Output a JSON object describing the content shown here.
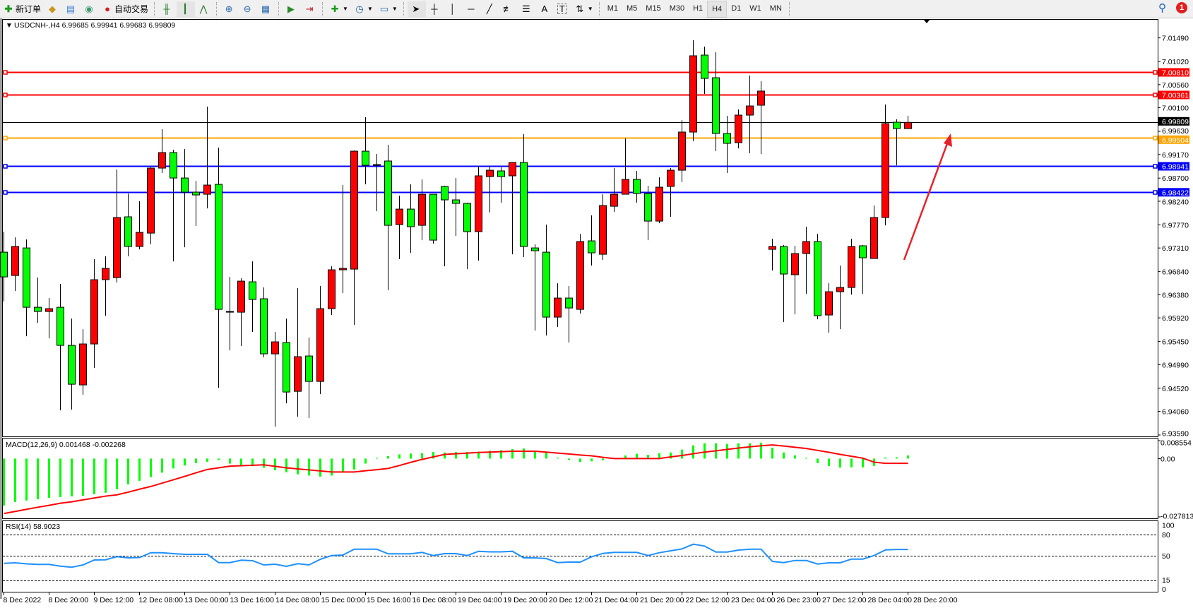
{
  "toolbar": {
    "new_order_label": "新订单",
    "auto_trading_label": "自动交易",
    "icons": [
      "new-order-icon",
      "gold-icon",
      "market-watch-icon",
      "signal-icon",
      "auto-trading-icon",
      "bar-chart-icon",
      "candlestick-icon",
      "line-chart-icon",
      "zoom-in-icon",
      "zoom-out-icon",
      "tile-windows-icon",
      "chart-shift-icon",
      "auto-scroll-icon",
      "indicators-icon",
      "periods-icon",
      "templates-icon",
      "cursor-icon",
      "crosshair-icon",
      "vertical-line-icon",
      "horizontal-line-icon",
      "trendline-icon",
      "fibonacci-icon",
      "fibo-fan-icon",
      "text-icon",
      "text-label-icon",
      "arrows-icon"
    ],
    "text_tool_label": "A",
    "timeframes": [
      "M1",
      "M5",
      "M15",
      "M30",
      "H1",
      "H4",
      "D1",
      "W1",
      "MN"
    ],
    "active_timeframe": "H4",
    "notification_count": "1"
  },
  "chart": {
    "header": "USDCNH-,H4  6.99685 6.99941 6.99683 6.99809",
    "symbol": "USDCNH-",
    "timeframe": "H4",
    "colors": {
      "bull": "#FF0000",
      "bear": "#00FF00",
      "wick": "#000000",
      "background": "#FFFFFF"
    },
    "price_ticks": [
      "7.01490",
      "7.01020",
      "7.00560",
      "7.00100",
      "6.99630",
      "6.99170",
      "6.98700",
      "6.98240",
      "6.97770",
      "6.97310",
      "6.96840",
      "6.96380",
      "6.95920",
      "6.95450",
      "6.94990",
      "6.94520",
      "6.94060",
      "6.93590"
    ],
    "current_price": {
      "value": "6.99809",
      "color": "#000000"
    },
    "hlines": [
      {
        "value": "7.00810",
        "color": "#FF0000"
      },
      {
        "value": "7.00361",
        "color": "#FF0000"
      },
      {
        "value": "6.99504",
        "color": "#FFA500"
      },
      {
        "value": "6.98941",
        "color": "#0000FF"
      },
      {
        "value": "6.98422",
        "color": "#0000FF"
      }
    ],
    "arrow_color": "#E8202A",
    "time_labels": [
      "8 Dec 2022",
      "8 Dec 20:00",
      "9 Dec 12:00",
      "12 Dec 08:00",
      "13 Dec 00:00",
      "13 Dec 16:00",
      "14 Dec 08:00",
      "15 Dec 00:00",
      "15 Dec 16:00",
      "16 Dec 08:00",
      "19 Dec 04:00",
      "19 Dec 20:00",
      "20 Dec 12:00",
      "21 Dec 04:00",
      "21 Dec 20:00",
      "22 Dec 12:00",
      "23 Dec 04:00",
      "26 Dec 23:00",
      "27 Dec 12:00",
      "28 Dec 04:00",
      "28 Dec 20:00"
    ]
  },
  "macd": {
    "label": "MACD(12,26,9) 0.001468 -0.002268",
    "axis_labels": [
      "0.008554",
      "0.00",
      "-0.027813"
    ],
    "colors": {
      "histogram": "#00FF00",
      "signal": "#FF0000"
    }
  },
  "rsi": {
    "label": "RSI(14) 58.9023",
    "axis_labels": [
      "100",
      "80",
      "50",
      "15",
      "0"
    ],
    "levels": [
      80,
      50,
      15
    ],
    "color": "#1E90FF"
  },
  "chart_data": {
    "type": "candlestick",
    "ohlc": [
      [
        6.97227,
        6.97635,
        6.96244,
        6.96735
      ],
      [
        6.96763,
        6.97522,
        6.96454,
        6.9734
      ],
      [
        6.97311,
        6.9748,
        6.95555,
        6.96131
      ],
      [
        6.96131,
        6.96721,
        6.95822,
        6.96047
      ],
      [
        6.96047,
        6.96314,
        6.95513,
        6.96103
      ],
      [
        6.96131,
        6.96595,
        6.9408,
        6.95373
      ],
      [
        6.95373,
        6.95906,
        6.94094,
        6.946
      ],
      [
        6.94586,
        6.95696,
        6.94389,
        6.95401
      ],
      [
        6.95401,
        6.97087,
        6.94923,
        6.96679
      ],
      [
        6.96679,
        6.97143,
        6.95963,
        6.96904
      ],
      [
        6.96721,
        6.98871,
        6.96623,
        6.97916
      ],
      [
        6.9793,
        6.98393,
        6.97143,
        6.9734
      ],
      [
        6.9734,
        6.98239,
        6.97283,
        6.97621
      ],
      [
        6.97606,
        6.98913,
        6.97382,
        6.98899
      ],
      [
        6.98899,
        6.99672,
        6.98801,
        6.99208
      ],
      [
        6.99208,
        6.99264,
        6.97044,
        6.98702
      ],
      [
        6.98702,
        6.99278,
        6.97325,
        6.98421
      ],
      [
        6.98421,
        6.98646,
        6.97747,
        6.98365
      ],
      [
        6.98379,
        7.00121,
        6.98098,
        6.98562
      ],
      [
        6.98576,
        6.99307,
        6.9453,
        6.96089
      ],
      [
        6.96047,
        6.96735,
        6.95274,
        6.96033
      ],
      [
        6.96033,
        6.96707,
        6.95358,
        6.96651
      ],
      [
        6.96637,
        6.97044,
        6.95639,
        6.96286
      ],
      [
        6.963,
        6.96525,
        6.95134,
        6.95204
      ],
      [
        6.95204,
        6.95639,
        6.93757,
        6.95443
      ],
      [
        6.95429,
        6.95906,
        6.9422,
        6.94445
      ],
      [
        6.94459,
        6.96511,
        6.93953,
        6.95148
      ],
      [
        6.95162,
        6.95527,
        6.93925,
        6.94656
      ],
      [
        6.94656,
        6.96553,
        6.94403,
        6.96103
      ],
      [
        6.96103,
        6.96946,
        6.95977,
        6.96876
      ],
      [
        6.96876,
        6.98562,
        6.96412,
        6.96904
      ],
      [
        6.9689,
        6.9925,
        6.9578,
        6.99236
      ],
      [
        6.99236,
        6.99911,
        6.98576,
        6.98955
      ],
      [
        6.98969,
        6.9918,
        6.98042,
        6.98969
      ],
      [
        6.9904,
        6.99363,
        6.96468,
        6.97761
      ],
      [
        6.97775,
        6.98351,
        6.97087,
        6.98084
      ],
      [
        6.98084,
        6.98576,
        6.97213,
        6.97733
      ],
      [
        6.97761,
        6.98674,
        6.97466,
        6.98379
      ],
      [
        6.98379,
        6.98379,
        6.97396,
        6.97466
      ],
      [
        6.98534,
        6.98548,
        6.96946,
        6.98267
      ],
      [
        6.98267,
        6.98702,
        6.9755,
        6.98197
      ],
      [
        6.98197,
        6.98211,
        6.9689,
        6.97635
      ],
      [
        6.97635,
        6.98941,
        6.97059,
        6.98745
      ],
      [
        6.9873,
        6.98941,
        6.98014,
        6.98857
      ],
      [
        6.98843,
        6.98913,
        6.98211,
        6.9873
      ],
      [
        6.98745,
        6.99011,
        6.97185,
        6.99011
      ],
      [
        6.99011,
        6.99573,
        6.97129,
        6.9734
      ],
      [
        6.97311,
        6.97382,
        6.95668,
        6.97255
      ],
      [
        6.97227,
        6.97775,
        6.95569,
        6.95935
      ],
      [
        6.95935,
        6.96609,
        6.95738,
        6.96314
      ],
      [
        6.96314,
        6.96553,
        6.95429,
        6.96117
      ],
      [
        6.96089,
        6.97592,
        6.96005,
        6.97438
      ],
      [
        6.97452,
        6.97958,
        6.9696,
        6.97213
      ],
      [
        6.97185,
        6.98379,
        6.97073,
        6.98154
      ],
      [
        6.9814,
        6.98899,
        6.98028,
        6.98379
      ],
      [
        6.98379,
        6.99489,
        6.98379,
        6.98674
      ],
      [
        6.98674,
        6.98843,
        6.98211,
        6.98393
      ],
      [
        6.98393,
        6.98548,
        6.97466,
        6.97845
      ],
      [
        6.97845,
        6.98716,
        6.97803,
        6.9852
      ],
      [
        6.98534,
        6.98899,
        6.9793,
        6.98857
      ],
      [
        6.98857,
        6.99854,
        6.98618,
        6.99616
      ],
      [
        6.99616,
        7.01442,
        6.99433,
        7.01133
      ],
      [
        7.01147,
        7.01316,
        7.00374,
        7.00683
      ],
      [
        7.00697,
        7.01203,
        6.99236,
        6.99588
      ],
      [
        6.99588,
        6.99939,
        6.98801,
        6.99391
      ],
      [
        6.99405,
        7.00065,
        6.99292,
        6.99953
      ],
      [
        6.99953,
        7.0074,
        6.99194,
        7.00135
      ],
      [
        7.0015,
        7.00627,
        6.9918,
        7.00431
      ],
      [
        6.97283,
        6.97494,
        6.96862,
        6.9734
      ],
      [
        6.9734,
        6.97368,
        6.95836,
        6.96792
      ],
      [
        6.96778,
        6.97354,
        6.95991,
        6.97199
      ],
      [
        6.97199,
        6.97733,
        6.96398,
        6.97438
      ],
      [
        6.97438,
        6.97592,
        6.95892,
        6.95963
      ],
      [
        6.95977,
        6.96609,
        6.95625,
        6.9644
      ],
      [
        6.9644,
        6.9696,
        6.95696,
        6.96525
      ],
      [
        6.96525,
        6.97494,
        6.96384,
        6.9734
      ],
      [
        6.97354,
        6.97368,
        6.96398,
        6.97115
      ],
      [
        6.97101,
        6.98154,
        6.97101,
        6.97916
      ],
      [
        6.97916,
        7.00164,
        6.97761,
        6.99784
      ],
      [
        6.99812,
        6.99869,
        6.98955,
        6.99686
      ],
      [
        6.99685,
        6.99941,
        6.99683,
        6.99809
      ]
    ],
    "price_range": [
      6.9359,
      7.0149
    ],
    "macd_histogram": [
      -0.0224,
      -0.0207,
      -0.02,
      -0.0194,
      -0.0187,
      -0.0184,
      -0.018,
      -0.0177,
      -0.017,
      -0.0163,
      -0.0146,
      -0.0123,
      -0.0106,
      -0.0088,
      -0.0067,
      -0.0047,
      -0.0033,
      -0.0022,
      -0.0015,
      -0.0007,
      -0.0024,
      -0.0033,
      -0.0036,
      -0.0044,
      -0.0056,
      -0.0065,
      -0.0075,
      -0.0081,
      -0.0086,
      -0.0081,
      -0.0064,
      -0.0052,
      -0.0024,
      -0.0002,
      0.0012,
      0.002,
      0.0024,
      0.0026,
      0.0031,
      0.0029,
      0.0031,
      0.0031,
      0.0033,
      0.0037,
      0.004,
      0.0045,
      0.0048,
      0.0033,
      0.0029,
      0.0004,
      -0.0006,
      -0.0016,
      -0.0013,
      -0.0008,
      -0.0002,
      0.0015,
      0.0023,
      0.0018,
      0.0026,
      0.0029,
      0.0043,
      0.0063,
      0.0073,
      0.0073,
      0.007,
      0.0073,
      0.0073,
      0.0076,
      0.0052,
      0.0029,
      0.0015,
      0.0002,
      -0.0022,
      -0.0036,
      -0.0043,
      -0.0042,
      -0.0042,
      -0.0036,
      0.0005,
      0.0006,
      0.001468
    ],
    "macd_signal": [
      -0.0262,
      -0.0252,
      -0.0242,
      -0.0232,
      -0.0223,
      -0.0213,
      -0.0206,
      -0.0197,
      -0.0188,
      -0.0179,
      -0.0173,
      -0.016,
      -0.0146,
      -0.0133,
      -0.0117,
      -0.0101,
      -0.0085,
      -0.0068,
      -0.0052,
      -0.0044,
      -0.0036,
      -0.0034,
      -0.0032,
      -0.003,
      -0.0037,
      -0.0044,
      -0.0049,
      -0.0054,
      -0.0059,
      -0.0064,
      -0.0064,
      -0.0064,
      -0.0058,
      -0.0053,
      -0.0047,
      -0.0033,
      -0.0018,
      -0.0004,
      0.0008,
      0.002,
      0.0023,
      0.0026,
      0.0029,
      0.0031,
      0.0033,
      0.0035,
      0.0035,
      0.0035,
      0.0031,
      0.0026,
      0.0022,
      0.0017,
      0.0013,
      0.0006,
      0.0,
      0.0,
      0.0,
      0.0,
      0.0,
      0.0008,
      0.0015,
      0.0023,
      0.0031,
      0.0037,
      0.0044,
      0.005,
      0.0056,
      0.0061,
      0.0065,
      0.006,
      0.0054,
      0.0048,
      0.0039,
      0.003,
      0.002,
      0.0011,
      0.0002,
      -0.0017,
      -0.002268,
      -0.002268,
      -0.002268
    ],
    "macd_range": [
      -0.027813,
      0.008554
    ],
    "rsi": [
      39.3,
      40,
      38.5,
      37.7,
      37.7,
      35.3,
      33.7,
      37,
      44,
      44.3,
      48.7,
      47,
      47.5,
      54.3,
      54.3,
      53,
      52,
      52,
      52,
      40.3,
      40.3,
      43.7,
      43,
      37,
      38,
      35,
      38.7,
      37,
      45,
      50.3,
      51,
      59.3,
      59.3,
      59.3,
      52.7,
      52.7,
      52.7,
      54.7,
      50.3,
      53,
      53,
      50.3,
      56.3,
      55.5,
      55.5,
      56.3,
      47,
      47,
      46,
      40.3,
      41,
      41,
      48.5,
      53.3,
      54.7,
      54.7,
      54.7,
      50.3,
      54.3,
      57,
      59.7,
      66.3,
      63.7,
      55.3,
      55.3,
      58,
      59.3,
      59.3,
      42,
      40.3,
      43.3,
      43.3,
      38.3,
      40,
      40,
      45.3,
      45.3,
      50.3,
      58.3,
      58.9,
      58.9023
    ],
    "rsi_range": [
      0,
      100
    ]
  }
}
